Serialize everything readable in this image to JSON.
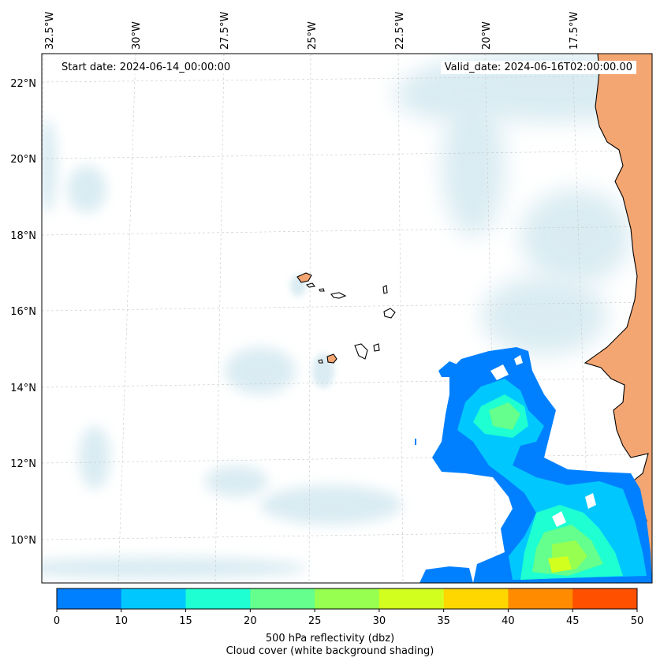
{
  "map": {
    "start_date_text": "Start date: 2024-06-14_00:00:00",
    "valid_date_text": "Valid_date: 2024-06-16T02:00:00.00",
    "lon_labels": [
      "32.5°W",
      "30°W",
      "27.5°W",
      "25°W",
      "22.5°W",
      "20°W",
      "17.5°W"
    ],
    "lat_labels": [
      "22°N",
      "20°N",
      "18°N",
      "16°N",
      "14°N",
      "12°N",
      "10°N"
    ],
    "extent": {
      "lon_min": -32.6,
      "lon_max": -15.2,
      "lat_min": 8.9,
      "lat_max": 22.8
    },
    "gridlines": true,
    "land_color": "#f4a672",
    "cloud_color": "#bcdde8"
  },
  "colorbar": {
    "ticks": [
      "0",
      "10",
      "15",
      "20",
      "25",
      "30",
      "35",
      "40",
      "45",
      "50"
    ],
    "colors": [
      "#0080ff",
      "#00c8ff",
      "#1effd2",
      "#64ff8c",
      "#96ff50",
      "#d2ff1e",
      "#ffd700",
      "#ff8c00",
      "#ff5000"
    ],
    "label_line1": "500 hPa reflectivity (dbz)",
    "label_line2": "Cloud cover (white background shading)"
  }
}
